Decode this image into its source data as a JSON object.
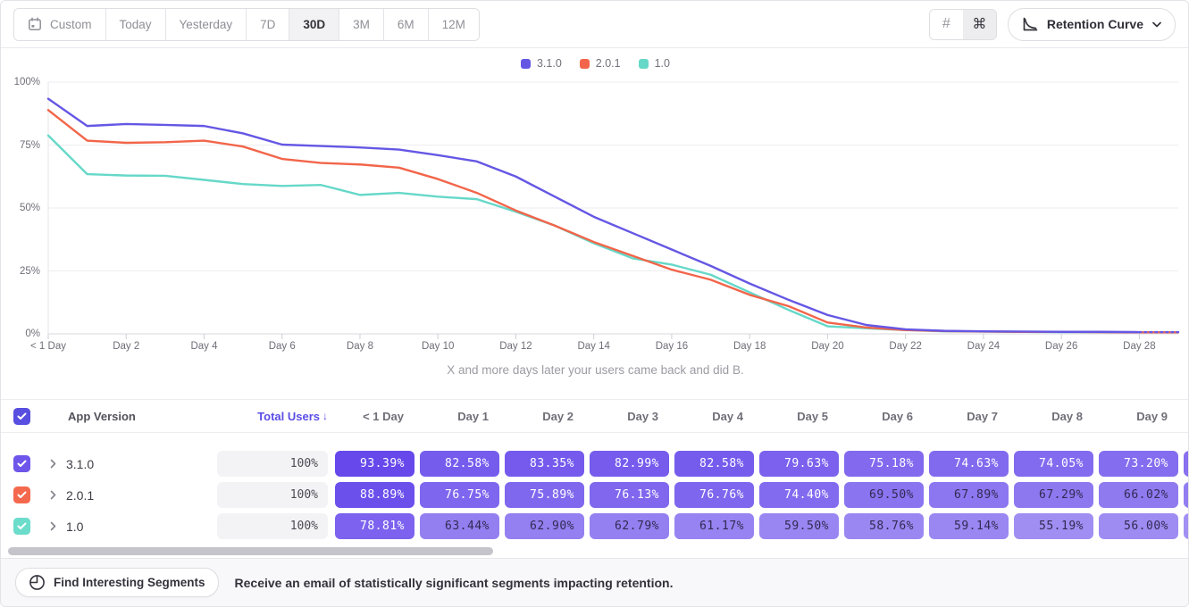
{
  "toolbar": {
    "date_ranges": [
      "Custom",
      "Today",
      "Yesterday",
      "7D",
      "30D",
      "3M",
      "6M",
      "12M"
    ],
    "selected_range": "30D",
    "view_toggle": {
      "options": [
        "#",
        "⌘"
      ],
      "selected_index": 1
    },
    "chart_type_label": "Retention Curve"
  },
  "chart_data": {
    "type": "line",
    "caption": "X and more days later your users came back and did B.",
    "x_labels": [
      "< 1 Day",
      "Day 2",
      "Day 4",
      "Day 6",
      "Day 8",
      "Day 10",
      "Day 12",
      "Day 14",
      "Day 16",
      "Day 18",
      "Day 20",
      "Day 22",
      "Day 24",
      "Day 26",
      "Day 28"
    ],
    "y_ticks": [
      {
        "label": "0%",
        "value": 0
      },
      {
        "label": "25%",
        "value": 25
      },
      {
        "label": "50%",
        "value": 50
      },
      {
        "label": "75%",
        "value": 75
      },
      {
        "label": "100%",
        "value": 100
      }
    ],
    "ylim": [
      0,
      100
    ],
    "grid": "horizontal",
    "legend_position": "top-center",
    "series": [
      {
        "name": "3.1.0",
        "color": "#6557e4",
        "dashed_tail": true,
        "values": [
          93.39,
          82.58,
          83.35,
          82.99,
          82.58,
          79.63,
          75.18,
          74.63,
          74.05,
          73.2,
          71.0,
          68.5,
          62.5,
          54.5,
          46.5,
          40.0,
          33.5,
          27.0,
          20.0,
          13.5,
          7.5,
          3.5,
          1.8,
          1.2,
          1.0,
          0.9,
          0.8,
          0.8,
          0.7,
          0.7
        ]
      },
      {
        "name": "2.0.1",
        "color": "#f2654a",
        "dashed_tail": false,
        "values": [
          88.89,
          76.75,
          75.89,
          76.13,
          76.76,
          74.4,
          69.5,
          67.89,
          67.29,
          66.02,
          61.5,
          56.0,
          49.0,
          43.0,
          36.5,
          31.0,
          25.5,
          21.5,
          15.5,
          11.0,
          4.5,
          2.5,
          1.5,
          1.1,
          0.9,
          0.8,
          0.8,
          0.7,
          0.6,
          0.6
        ]
      },
      {
        "name": "1.0",
        "color": "#66d8c8",
        "dashed_tail": false,
        "values": [
          78.81,
          63.44,
          62.9,
          62.79,
          61.17,
          59.5,
          58.76,
          59.14,
          55.19,
          56.0,
          54.5,
          53.5,
          48.5,
          43.0,
          36.0,
          30.0,
          27.5,
          23.5,
          16.5,
          9.5,
          3.0,
          2.2,
          1.5,
          1.0,
          0.9,
          0.8,
          0.7,
          0.7,
          0.6,
          0.6
        ]
      }
    ]
  },
  "table": {
    "select_all_checked": true,
    "version_header": "App Version",
    "total_header": "Total Users",
    "sort_indicator": "↓",
    "day_headers": [
      "< 1 Day",
      "Day 1",
      "Day 2",
      "Day 3",
      "Day 4",
      "Day 5",
      "Day 6",
      "Day 7",
      "Day 8",
      "Day 9"
    ],
    "header_checkbox_color": "#584ee0",
    "rows": [
      {
        "label": "3.1.0",
        "checked": true,
        "checkbox_color": "#6e56ea",
        "total_users": "100%",
        "cells": [
          "93.39%",
          "82.58%",
          "83.35%",
          "82.99%",
          "82.58%",
          "79.63%",
          "75.18%",
          "74.63%",
          "74.05%",
          "73.20%"
        ]
      },
      {
        "label": "2.0.1",
        "checked": true,
        "checkbox_color": "#f4694d",
        "total_users": "100%",
        "cells": [
          "88.89%",
          "76.75%",
          "75.89%",
          "76.13%",
          "76.76%",
          "74.40%",
          "69.50%",
          "67.89%",
          "67.29%",
          "66.02%"
        ]
      },
      {
        "label": "1.0",
        "checked": true,
        "checkbox_color": "#6cdccb",
        "total_users": "100%",
        "cells": [
          "78.81%",
          "63.44%",
          "62.90%",
          "62.79%",
          "61.17%",
          "59.50%",
          "58.76%",
          "59.14%",
          "55.19%",
          "56.00%"
        ]
      }
    ]
  },
  "footer": {
    "button_label": "Find Interesting Segments",
    "message": "Receive an email of statistically significant segments impacting retention."
  }
}
